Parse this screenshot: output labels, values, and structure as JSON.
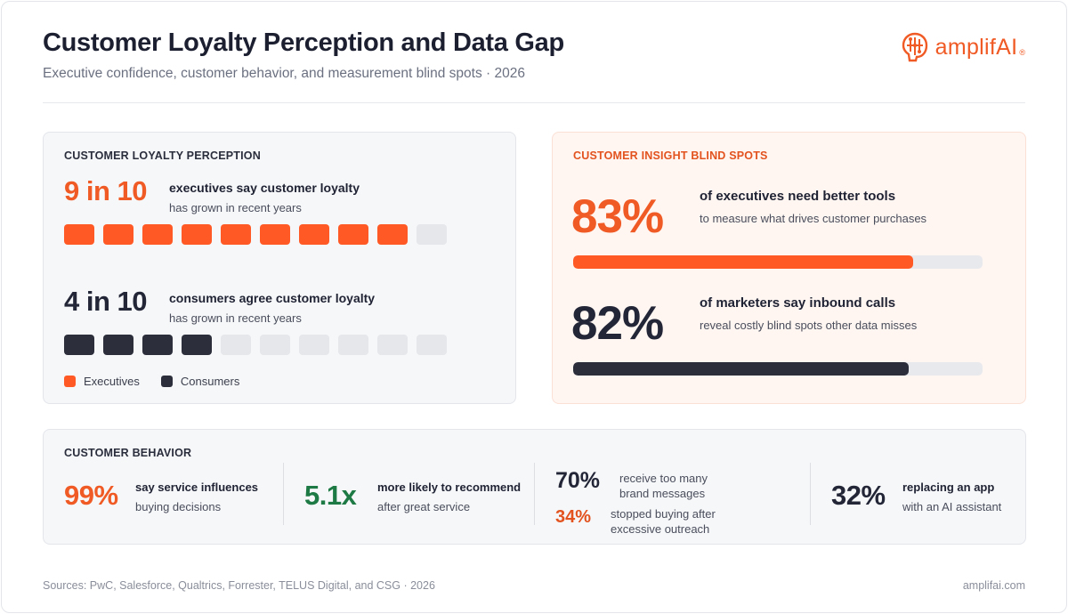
{
  "header": {
    "title": "Customer Loyalty Perception and Data Gap",
    "subtitle": "Executive confidence, customer behavior, and measurement blind spots · 2026",
    "logo_text": "amplifAI",
    "logo_mark": "®"
  },
  "colors": {
    "accent": "#f05a24",
    "dark": "#2c2f3b",
    "green": "#1e7a44",
    "empty": "#e6e7eb"
  },
  "loyalty": {
    "label": "CUSTOMER LOYALTY PERCEPTION",
    "exec": {
      "stat": "9 in 10",
      "head": "executives say customer loyalty",
      "sub": "has grown in recent years"
    },
    "cons": {
      "stat": "4 in 10",
      "head": "consumers agree customer loyalty",
      "sub": "has grown in recent years"
    },
    "legend_exec": "Executives",
    "legend_cons": "Consumers"
  },
  "blind_spots": {
    "label": "CUSTOMER INSIGHT BLIND SPOTS",
    "exec_tools": {
      "value": "83%",
      "head": "of executives need better tools",
      "sub": "to measure what drives customer purchases"
    },
    "inbound": {
      "value": "82%",
      "head": "of marketers say inbound calls",
      "sub": "reveal costly blind spots other data misses"
    }
  },
  "behavior": {
    "label": "CUSTOMER BEHAVIOR",
    "service": {
      "value": "99%",
      "head": "say service influences",
      "sub": "buying decisions"
    },
    "recommend": {
      "value": "5.1x",
      "head": "more likely to recommend",
      "sub": "after great service"
    },
    "too_many": {
      "value": "70%",
      "line1": "receive too many",
      "line2": "brand messages"
    },
    "stopped": {
      "value": "34%",
      "line1": "stopped buying after",
      "line2": "excessive outreach"
    },
    "app": {
      "value": "32%",
      "head": "replacing an app",
      "sub": "with an AI assistant"
    }
  },
  "footer": {
    "sources": "Sources: PwC, Salesforce, Qualtrics, Forrester, TELUS Digital, and CSG · 2026",
    "site": "amplifai.com"
  },
  "chart_data": [
    {
      "type": "bar",
      "categories": [
        "Executives",
        "Consumers"
      ],
      "values": [
        9,
        4
      ],
      "out_of": 10
    },
    {
      "type": "bar",
      "categories": [
        "of executives need better tools",
        "of marketers say inbound calls"
      ],
      "values": [
        83,
        82
      ],
      "ylim": [
        0,
        100
      ]
    }
  ]
}
